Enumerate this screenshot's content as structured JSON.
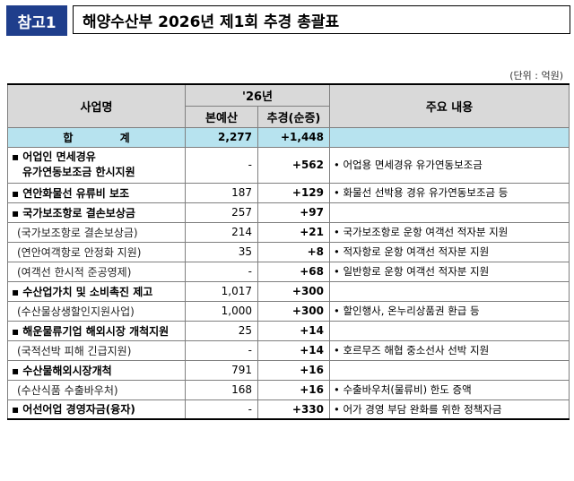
{
  "header": {
    "ref_label": "참고1",
    "title": "해양수산부 2026년 제1회 추경 총괄표"
  },
  "unit_note": "(단위 : 억원)",
  "table": {
    "headers": {
      "business": "사업명",
      "year": "'26년",
      "original": "본예산",
      "supplement": "추경(순증)",
      "content": "주요 내용"
    },
    "total": {
      "label": "합 계",
      "original": "2,277",
      "supplement": "+1,448",
      "content": ""
    },
    "rows": [
      {
        "type": "main",
        "name": "▪ 어업인 면세경유",
        "name2": "유가연동보조금 한시지원",
        "original": "-",
        "supplement": "+562",
        "content": "• 어업용 면세경유 유가연동보조금"
      },
      {
        "type": "main",
        "name": "▪ 연안화물선 유류비 보조",
        "original": "187",
        "supplement": "+129",
        "content": "• 화물선 선박용 경유 유가연동보조금 등"
      },
      {
        "type": "main",
        "name": "▪ 국가보조항로 결손보상금",
        "original": "257",
        "supplement": "+97",
        "content": ""
      },
      {
        "type": "sub",
        "name": "(국가보조항로 결손보상금)",
        "original": "214",
        "supplement": "+21",
        "content": "• 국가보조항로 운항 여객선 적자분 지원"
      },
      {
        "type": "sub",
        "name": "(연안여객항로 안정화 지원)",
        "original": "35",
        "supplement": "+8",
        "content": "• 적자항로 운항 여객선 적자분 지원"
      },
      {
        "type": "sub",
        "name": "(여객선 한시적 준공영제)",
        "original": "-",
        "supplement": "+68",
        "content": "• 일반항로 운항 여객선 적자분 지원"
      },
      {
        "type": "main",
        "name": "▪ 수산업가치 및 소비촉진 제고",
        "original": "1,017",
        "supplement": "+300",
        "content": ""
      },
      {
        "type": "sub",
        "name": "(수산물상생할인지원사업)",
        "original": "1,000",
        "supplement": "+300",
        "content": "• 할인행사, 온누리상품권 환급 등"
      },
      {
        "type": "main",
        "name": "▪ 해운물류기업 해외시장 개척지원",
        "original": "25",
        "supplement": "+14",
        "content": ""
      },
      {
        "type": "sub",
        "name": "(국적선박 피해 긴급지원)",
        "original": "-",
        "supplement": "+14",
        "content": "• 호르무즈 해협 중소선사 선박 지원"
      },
      {
        "type": "main",
        "name": "▪ 수산물해외시장개척",
        "original": "791",
        "supplement": "+16",
        "content": ""
      },
      {
        "type": "sub",
        "name": "(수산식품 수출바우처)",
        "original": "168",
        "supplement": "+16",
        "content": "• 수출바우처(물류비) 한도 증액"
      },
      {
        "type": "main",
        "name": "▪ 어선어업 경영자금(융자)",
        "original": "-",
        "supplement": "+330",
        "content": "• 어가 경영 부담 완화를 위한 정책자금"
      }
    ]
  }
}
